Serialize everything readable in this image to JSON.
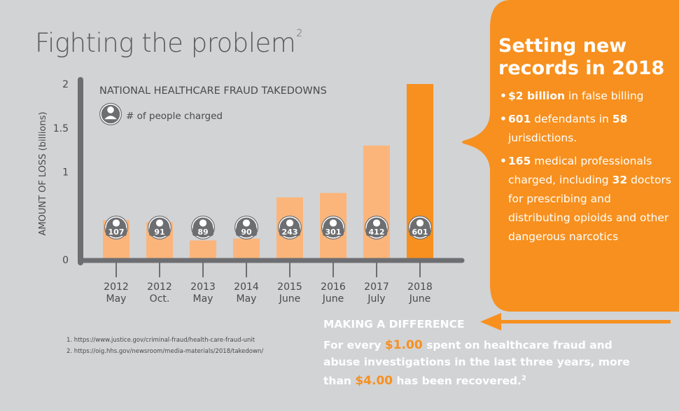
{
  "page": {
    "title": "Fighting the problem",
    "title_sup": "2"
  },
  "chart_data": {
    "type": "bar",
    "title": "NATIONAL HEALTHCARE FRAUD TAKEDOWNS",
    "legend_label": "# of people charged",
    "ylabel": "AMOUNT OF LOSS (billions)",
    "ylim": [
      0,
      2
    ],
    "yticks": [
      "0",
      "1",
      "1.5",
      "2"
    ],
    "categories": [
      {
        "year": "2012",
        "month": "May"
      },
      {
        "year": "2012",
        "month": "Oct."
      },
      {
        "year": "2013",
        "month": "May"
      },
      {
        "year": "2014",
        "month": "May"
      },
      {
        "year": "2015",
        "month": "June"
      },
      {
        "year": "2016",
        "month": "June"
      },
      {
        "year": "2017",
        "month": "July"
      },
      {
        "year": "2018",
        "month": "June"
      }
    ],
    "values": [
      0.45,
      0.43,
      0.22,
      0.24,
      0.71,
      0.76,
      1.3,
      2.0
    ],
    "people_charged": [
      "107",
      "91",
      "89",
      "90",
      "243",
      "301",
      "412",
      "601"
    ],
    "highlight_index": 7,
    "colors": {
      "bar": "#fbb57b",
      "bar_highlight": "#f7901e",
      "axis": "#6d6e71",
      "icon": "#6d6e71"
    }
  },
  "footnotes": [
    "1. https://www.justice.gov/criminal-fraud/health-care-fraud-unit",
    "2. https://oig.hhs.gov/newsroom/media-materials/2018/takedown/"
  ],
  "panel": {
    "heading": "Setting new records in 2018",
    "bullets": [
      {
        "b1": "$2 billion",
        "t1": " in false billing"
      },
      {
        "b1": "601",
        "t1": " defendants in ",
        "b2": "58",
        "t2": " jurisdictions."
      },
      {
        "b1": "165",
        "t1": " medical professionals charged, including ",
        "b2": "32",
        "t2": " doctors for prescribing and distributing opioids and other dangerous narcotics"
      }
    ],
    "color": "#f7901e"
  },
  "making_difference": {
    "heading": "MAKING A DIFFERENCE",
    "t1": "For every ",
    "h1": "$1.00",
    "t2": " spent on healthcare fraud and abuse investigations in the last three years, more than ",
    "h2": "$4.00",
    "t3": " has been recovered.",
    "sup": "2"
  }
}
